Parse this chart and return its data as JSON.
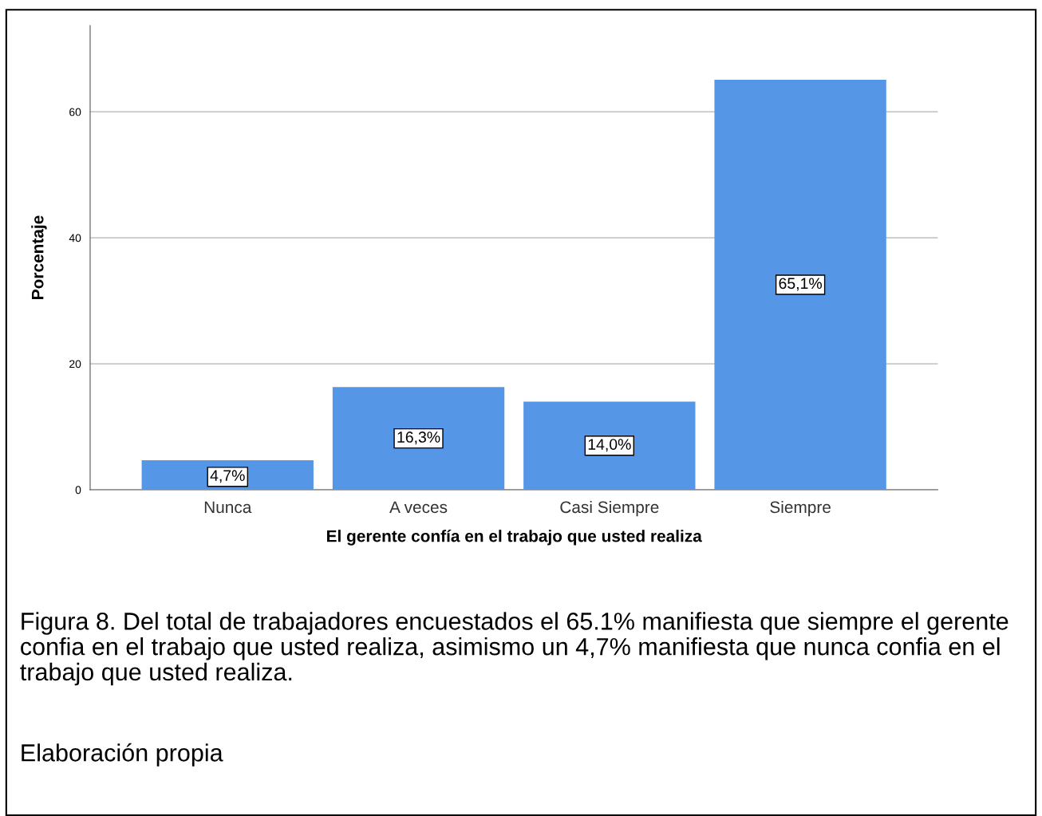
{
  "chart_data": {
    "type": "bar",
    "xlabel": "El gerente confía en el trabajo que usted realiza",
    "ylabel": "Porcentaje",
    "categories": [
      "Nunca",
      "A veces",
      "Casi Siempre",
      "Siempre"
    ],
    "values": [
      4.7,
      16.3,
      14.0,
      65.1
    ],
    "color": "#5596e6",
    "value_labels": [
      "4,7%",
      "16,3%",
      "14,0%",
      "65,1%"
    ],
    "ylim": [
      0,
      73.7
    ],
    "yticks": [
      0,
      20,
      40,
      60
    ],
    "grid": "y",
    "annotations": [
      "Figura 8. Del total de trabajadores encuestados el 65.1% manifiesta que siempre el gerente confia en el trabajo que usted realiza, asimismo un 4,7% manifiesta que nunca confia en el trabajo que usted realiza.",
      "Elaboración propia"
    ]
  }
}
